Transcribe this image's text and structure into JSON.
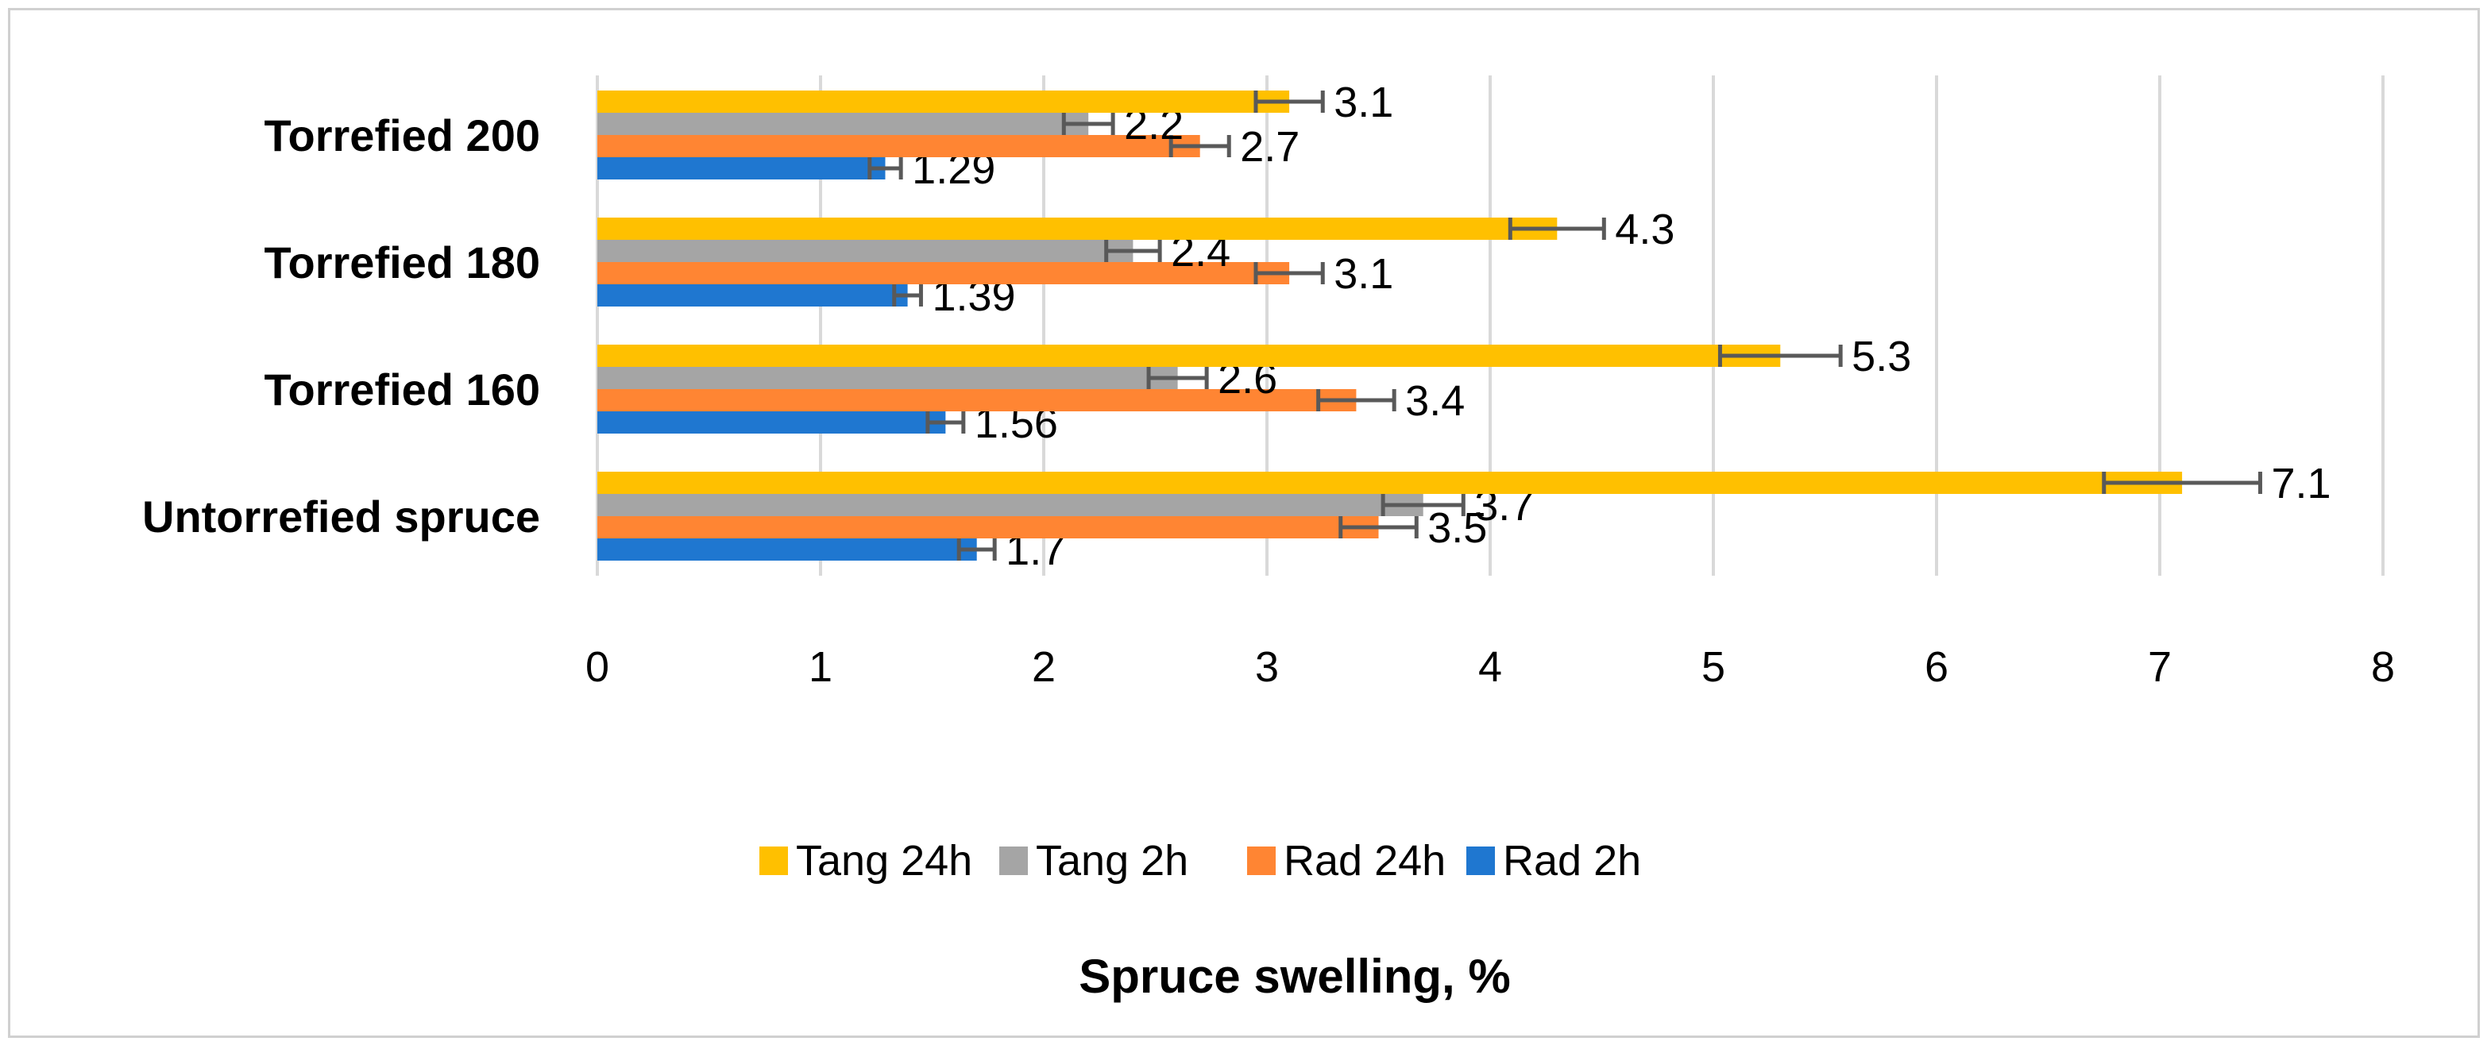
{
  "chart_data": {
    "type": "bar",
    "orientation": "horizontal",
    "title": "",
    "xlabel": "Spruce swelling, %",
    "ylabel": "",
    "xlim": [
      0,
      8
    ],
    "xticks": [
      "0",
      "1",
      "2",
      "3",
      "4",
      "5",
      "6",
      "7",
      "8"
    ],
    "grid": true,
    "legend_position": "bottom",
    "categories": [
      "Untorrefied  spruce",
      "Torrefied 160",
      "Torrefied 180",
      "Torrefied 200"
    ],
    "series": [
      {
        "name": "Rad 2h",
        "color": "#1F77D0",
        "values": [
          1.7,
          1.56,
          1.39,
          1.29
        ],
        "labels": [
          "1.7",
          "1.56",
          "1.39",
          "1.29"
        ],
        "errors": [
          0.08,
          0.08,
          0.06,
          0.07
        ]
      },
      {
        "name": "Rad 24h",
        "color": "#FF8533",
        "values": [
          3.5,
          3.4,
          3.1,
          2.7
        ],
        "labels": [
          "3.5",
          "3.4",
          "3.1",
          "2.7"
        ],
        "errors": [
          0.17,
          0.17,
          0.15,
          0.13
        ]
      },
      {
        "name": "Tang 2h",
        "color": "#A5A5A5",
        "values": [
          3.7,
          2.6,
          2.4,
          2.2
        ],
        "labels": [
          "3.7",
          "2.6",
          "2.4",
          "2.2"
        ],
        "errors": [
          0.18,
          0.13,
          0.12,
          0.11
        ]
      },
      {
        "name": "Tang 24h",
        "color": "#FFC000",
        "values": [
          7.1,
          5.3,
          4.3,
          3.1
        ],
        "labels": [
          "7.1",
          "5.3",
          "4.3",
          "3.1"
        ],
        "errors": [
          0.35,
          0.27,
          0.21,
          0.15
        ]
      }
    ],
    "legend_order": [
      "Tang 24h",
      "Tang 2h",
      "Rad 24h",
      "Rad 2h"
    ]
  }
}
